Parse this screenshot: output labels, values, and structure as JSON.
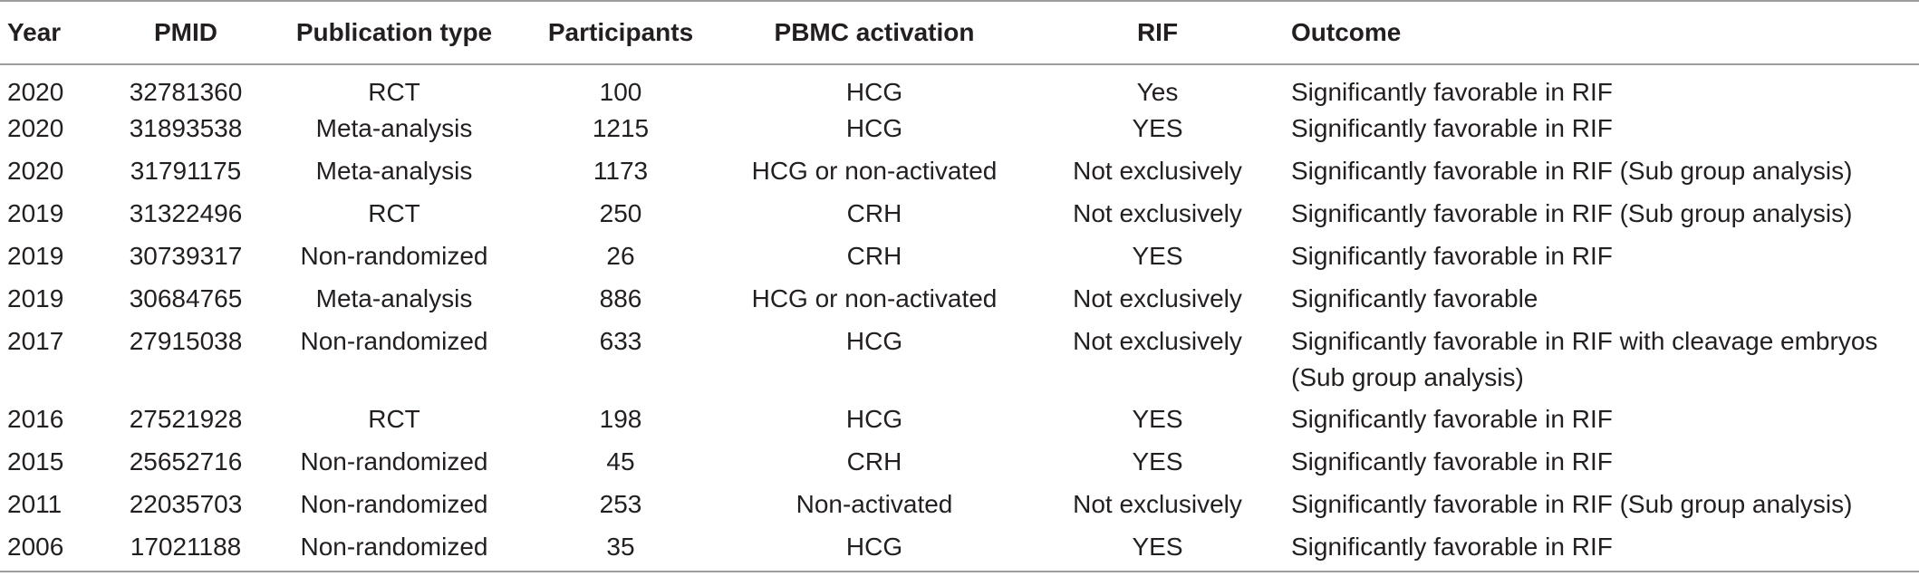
{
  "table": {
    "headers": {
      "year": "Year",
      "pmid": "PMID",
      "publication_type": "Publication type",
      "participants": "Participants",
      "pbmc_activation": "PBMC activation",
      "rif": "RIF",
      "outcome": "Outcome"
    },
    "rows": [
      {
        "year": "2020",
        "pmid": "32781360",
        "publication_type": "RCT",
        "participants": "100",
        "pbmc_activation": "HCG",
        "rif": "Yes",
        "outcome": "Significantly favorable in RIF"
      },
      {
        "year": "2020",
        "pmid": "31893538",
        "publication_type": "Meta-analysis",
        "participants": "1215",
        "pbmc_activation": "HCG",
        "rif": "YES",
        "outcome": "Significantly favorable in RIF"
      },
      {
        "year": "2020",
        "pmid": "31791175",
        "publication_type": "Meta-analysis",
        "participants": "1173",
        "pbmc_activation": "HCG or non-activated",
        "rif": "Not exclusively",
        "outcome": "Significantly favorable in RIF (Sub group analysis)"
      },
      {
        "year": "2019",
        "pmid": "31322496",
        "publication_type": "RCT",
        "participants": "250",
        "pbmc_activation": "CRH",
        "rif": "Not exclusively",
        "outcome": "Significantly favorable in RIF (Sub group analysis)"
      },
      {
        "year": "2019",
        "pmid": "30739317",
        "publication_type": "Non-randomized",
        "participants": "26",
        "pbmc_activation": "CRH",
        "rif": "YES",
        "outcome": "Significantly favorable in RIF"
      },
      {
        "year": "2019",
        "pmid": "30684765",
        "publication_type": "Meta-analysis",
        "participants": "886",
        "pbmc_activation": "HCG or non-activated",
        "rif": "Not exclusively",
        "outcome": "Significantly favorable"
      },
      {
        "year": "2017",
        "pmid": "27915038",
        "publication_type": "Non-randomized",
        "participants": "633",
        "pbmc_activation": "HCG",
        "rif": "Not exclusively",
        "outcome": "Significantly favorable in RIF with cleavage embryos (Sub group analysis)"
      },
      {
        "year": "2016",
        "pmid": "27521928",
        "publication_type": "RCT",
        "participants": "198",
        "pbmc_activation": "HCG",
        "rif": "YES",
        "outcome": "Significantly favorable in RIF"
      },
      {
        "year": "2015",
        "pmid": "25652716",
        "publication_type": "Non-randomized",
        "participants": "45",
        "pbmc_activation": "CRH",
        "rif": "YES",
        "outcome": "Significantly favorable in RIF"
      },
      {
        "year": "2011",
        "pmid": "22035703",
        "publication_type": "Non-randomized",
        "participants": "253",
        "pbmc_activation": "Non-activated",
        "rif": "Not exclusively",
        "outcome": "Significantly favorable in RIF (Sub group analysis)"
      },
      {
        "year": "2006",
        "pmid": "17021188",
        "publication_type": "Non-randomized",
        "participants": "35",
        "pbmc_activation": "HCG",
        "rif": "YES",
        "outcome": "Significantly favorable in RIF"
      }
    ]
  }
}
